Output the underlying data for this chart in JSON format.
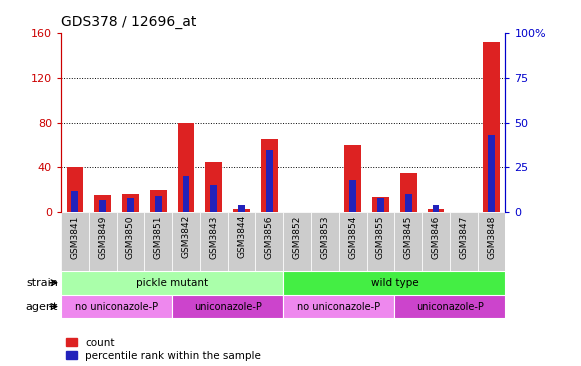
{
  "title": "GDS378 / 12696_at",
  "samples": [
    "GSM3841",
    "GSM3849",
    "GSM3850",
    "GSM3851",
    "GSM3842",
    "GSM3843",
    "GSM3844",
    "GSM3856",
    "GSM3852",
    "GSM3853",
    "GSM3854",
    "GSM3855",
    "GSM3845",
    "GSM3846",
    "GSM3847",
    "GSM3848"
  ],
  "count": [
    40,
    15,
    16,
    20,
    80,
    45,
    3,
    65,
    0,
    0,
    60,
    14,
    35,
    3,
    0,
    152
  ],
  "percentile": [
    12,
    7,
    8,
    9,
    20,
    15,
    4,
    35,
    0,
    0,
    18,
    8,
    10,
    4,
    0,
    43
  ],
  "ylim_left": [
    0,
    160
  ],
  "ylim_right": [
    0,
    100
  ],
  "yticks_left": [
    0,
    40,
    80,
    120,
    160
  ],
  "yticks_right": [
    0,
    25,
    50,
    75,
    100
  ],
  "yticklabels_right": [
    "0",
    "25",
    "50",
    "75",
    "100%"
  ],
  "bar_color_red": "#dd2222",
  "bar_color_blue": "#2222bb",
  "strain_groups": [
    {
      "label": "pickle mutant",
      "start": 0,
      "end": 8,
      "color": "#aaffaa"
    },
    {
      "label": "wild type",
      "start": 8,
      "end": 16,
      "color": "#44ee44"
    }
  ],
  "agent_groups": [
    {
      "label": "no uniconazole-P",
      "start": 0,
      "end": 4,
      "color": "#ee88ee"
    },
    {
      "label": "uniconazole-P",
      "start": 4,
      "end": 8,
      "color": "#cc44cc"
    },
    {
      "label": "no uniconazole-P",
      "start": 8,
      "end": 12,
      "color": "#ee88ee"
    },
    {
      "label": "uniconazole-P",
      "start": 12,
      "end": 16,
      "color": "#cc44cc"
    }
  ],
  "strain_label": "strain",
  "agent_label": "agent",
  "legend_count": "count",
  "legend_pct": "percentile rank within the sample",
  "title_fontsize": 10,
  "tick_label_fontsize": 6.5,
  "axis_label_color_left": "#cc0000",
  "axis_label_color_right": "#0000cc",
  "xtick_bg": "#cccccc"
}
